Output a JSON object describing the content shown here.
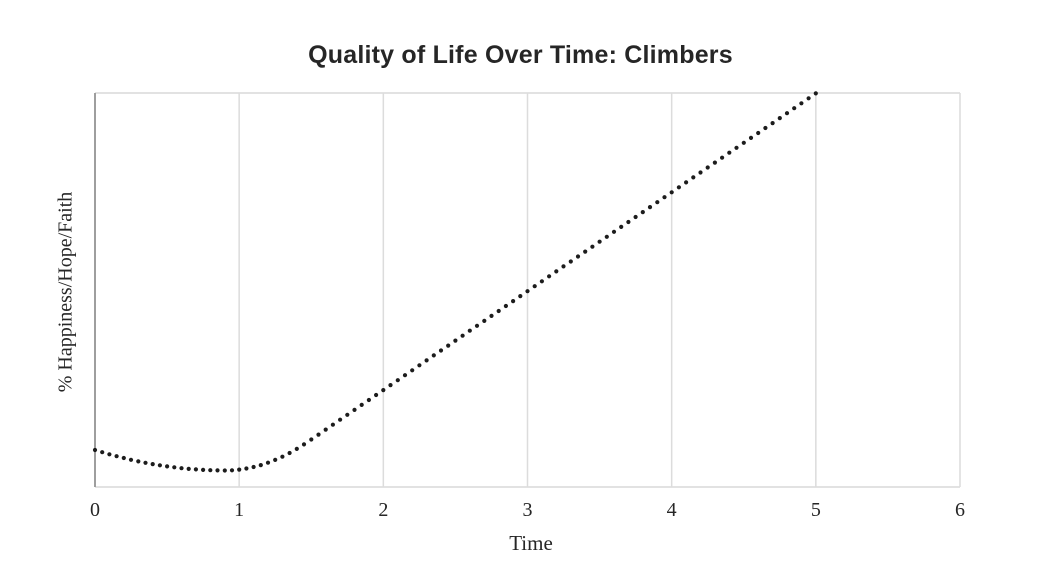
{
  "chart_data": {
    "type": "scatter",
    "title": "Quality of Life Over Time: Climbers",
    "xlabel": "Time",
    "ylabel": "% Happiness/Hope/Faith",
    "xlim": [
      0,
      6
    ],
    "ylim": [
      0,
      100
    ],
    "x_ticks": [
      0,
      1,
      2,
      3,
      4,
      5,
      6
    ],
    "y_ticks": [],
    "grid": "vertical-only",
    "legend": "none",
    "marker": {
      "shape": "circle",
      "radius_px": 2.1
    },
    "description": "Dotted curve starts near 9% at t=0, dips to a minimum of about 4% near t=0.9, then climbs nearly linearly to 100% at t=5.",
    "series": [
      {
        "name": "Climbers",
        "x": [
          0,
          0.05,
          0.1,
          0.15,
          0.2,
          0.25,
          0.3,
          0.35,
          0.4,
          0.45,
          0.5,
          0.55,
          0.6,
          0.65,
          0.7,
          0.75,
          0.8,
          0.85,
          0.9,
          0.95,
          1,
          1.05,
          1.1,
          1.15,
          1.2,
          1.25,
          1.3,
          1.35,
          1.4,
          1.45,
          1.5,
          1.55,
          1.6,
          1.65,
          1.7,
          1.75,
          1.8,
          1.85,
          1.9,
          1.95,
          2,
          2.05,
          2.1,
          2.15,
          2.2,
          2.25,
          2.3,
          2.35,
          2.4,
          2.45,
          2.5,
          2.55,
          2.6,
          2.65,
          2.7,
          2.75,
          2.8,
          2.85,
          2.9,
          2.95,
          3,
          3.05,
          3.1,
          3.15,
          3.2,
          3.25,
          3.3,
          3.35,
          3.4,
          3.45,
          3.5,
          3.55,
          3.6,
          3.65,
          3.7,
          3.75,
          3.8,
          3.85,
          3.9,
          3.95,
          4,
          4.05,
          4.1,
          4.15,
          4.2,
          4.25,
          4.3,
          4.35,
          4.4,
          4.45,
          4.5,
          4.55,
          4.6,
          4.65,
          4.7,
          4.75,
          4.8,
          4.85,
          4.9,
          4.95,
          5
        ],
        "y": [
          9.4,
          8.84,
          8.31,
          7.81,
          7.35,
          6.91,
          6.51,
          6.14,
          5.81,
          5.5,
          5.23,
          4.99,
          4.78,
          4.6,
          4.46,
          4.34,
          4.26,
          4.22,
          4.2,
          4.25,
          4.42,
          4.69,
          5.07,
          5.57,
          6.17,
          6.88,
          7.69,
          8.62,
          9.66,
          10.81,
          12.05,
          13.3,
          14.56,
          15.82,
          17.07,
          18.33,
          19.58,
          20.84,
          22.09,
          23.35,
          24.6,
          25.86,
          27.11,
          28.37,
          29.62,
          30.88,
          32.13,
          33.39,
          34.64,
          35.9,
          37.15,
          38.41,
          39.66,
          40.92,
          42.17,
          43.43,
          44.68,
          45.94,
          47.19,
          48.45,
          49.7,
          50.96,
          52.21,
          53.47,
          54.72,
          55.98,
          57.23,
          58.49,
          59.74,
          61,
          62.25,
          63.51,
          64.76,
          66.02,
          67.27,
          68.53,
          69.78,
          71.04,
          72.29,
          73.55,
          74.8,
          76.06,
          77.31,
          78.57,
          79.82,
          81.08,
          82.33,
          83.59,
          84.84,
          86.1,
          87.35,
          88.61,
          89.86,
          91.12,
          92.37,
          93.63,
          94.88,
          96.14,
          97.39,
          98.65,
          99.9
        ]
      }
    ]
  },
  "colors": {
    "title_text": "#262626",
    "label_text": "#262626",
    "tick_text": "#262626",
    "dot": "#1c1c1c",
    "axis_line": "#9e9e9e",
    "gridline": "#dcdcdc",
    "border": "#d9d9d9",
    "background": "#ffffff"
  }
}
